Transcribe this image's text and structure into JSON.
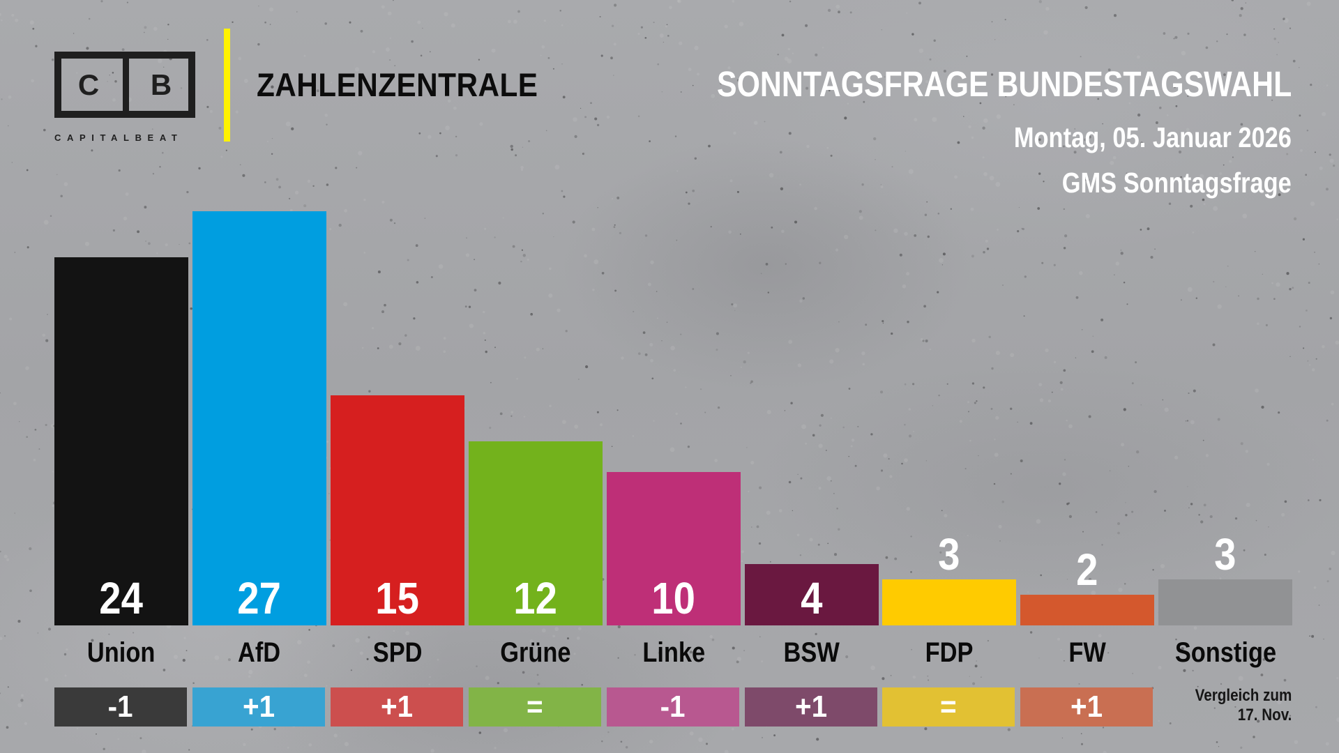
{
  "brand": {
    "logo_letters": [
      "C",
      "B"
    ],
    "wordmark": "CAPITALBEAT",
    "section": "ZAHLENZENTRALE",
    "accent_color": "#fff200"
  },
  "header": {
    "title": "SONNTAGSFRAGE BUNDESTAGSWAHL",
    "date": "Montag, 05. Januar 2026",
    "source": "GMS Sonntagsfrage"
  },
  "comparison_note": {
    "line1": "Vergleich zum",
    "line2": "17. Nov."
  },
  "chart_data": {
    "type": "bar",
    "title": "SONNTAGSFRAGE BUNDESTAGSWAHL",
    "subtitle": "Montag, 05. Januar 2026 · GMS Sonntagsfrage",
    "unit": "%",
    "ylim": [
      0,
      27
    ],
    "grid": false,
    "categories": [
      "Union",
      "AfD",
      "SPD",
      "Grüne",
      "Linke",
      "BSW",
      "FDP",
      "FW",
      "Sonstige"
    ],
    "values": [
      24,
      27,
      15,
      12,
      10,
      4,
      3,
      2,
      3
    ],
    "changes": [
      "-1",
      "+1",
      "+1",
      "=",
      "-1",
      "+1",
      "=",
      "+1",
      null
    ],
    "bar_colors": [
      "#131313",
      "#009ee0",
      "#d61f1f",
      "#73b21c",
      "#be2f77",
      "#6a1840",
      "#ffcb00",
      "#d4582d",
      "#919294"
    ],
    "change_colors": [
      "#3a3a3a",
      "#38a3d2",
      "#cc4f4e",
      "#82b447",
      "#b85890",
      "#7e4a6a",
      "#e2c133",
      "#c96f52",
      null
    ]
  }
}
